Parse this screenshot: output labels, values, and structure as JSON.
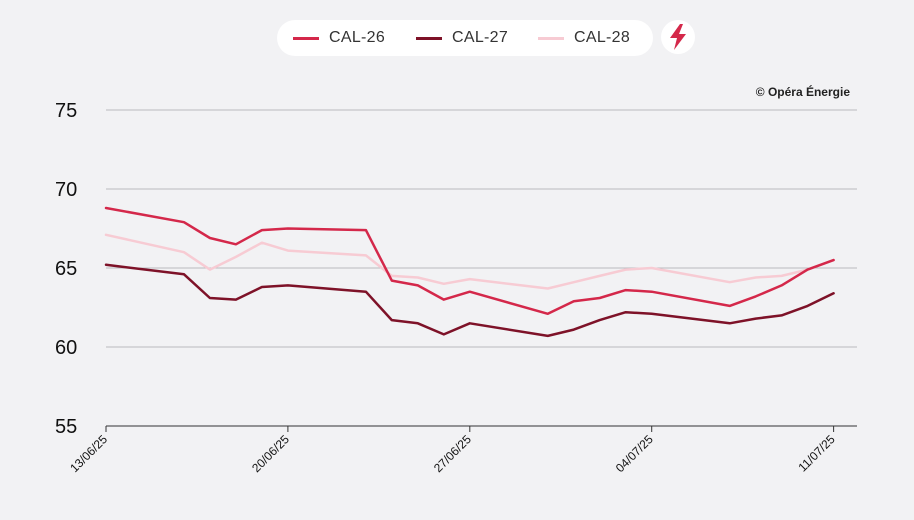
{
  "legend": {
    "cal26": "CAL-26",
    "cal27": "CAL-27",
    "cal28": "CAL-28"
  },
  "credit": "© Opéra Énergie",
  "colors": {
    "cal26": "#d4284a",
    "cal27": "#7e1228",
    "cal28": "#f7cbd3",
    "grid": "#b9b9be",
    "accent": "#d4284a"
  },
  "chart_data": {
    "type": "line",
    "x_tick_labels": [
      "13/06/25",
      "20/06/25",
      "27/06/25",
      "04/07/25",
      "11/07/25"
    ],
    "x_ticks": [
      0,
      7,
      14,
      21,
      28
    ],
    "xlim": [
      0,
      28.9
    ],
    "ylim": [
      55,
      75
    ],
    "y_ticks": [
      55,
      60,
      65,
      70,
      75
    ],
    "grid": true,
    "legend_position": "top-center",
    "series": [
      {
        "name": "CAL-26",
        "color": "#d4284a",
        "points": [
          [
            0,
            68.8
          ],
          [
            3,
            67.9
          ],
          [
            4,
            66.9
          ],
          [
            5,
            66.5
          ],
          [
            6,
            67.4
          ],
          [
            7,
            67.5
          ],
          [
            10,
            67.4
          ],
          [
            11,
            64.2
          ],
          [
            12,
            63.9
          ],
          [
            13,
            63.0
          ],
          [
            14,
            63.5
          ],
          [
            17,
            62.1
          ],
          [
            18,
            62.9
          ],
          [
            19,
            63.1
          ],
          [
            20,
            63.6
          ],
          [
            21,
            63.5
          ],
          [
            24,
            62.6
          ],
          [
            25,
            63.2
          ],
          [
            26,
            63.9
          ],
          [
            27,
            64.9
          ],
          [
            28,
            65.5
          ]
        ]
      },
      {
        "name": "CAL-27",
        "color": "#7e1228",
        "points": [
          [
            0,
            65.2
          ],
          [
            3,
            64.6
          ],
          [
            4,
            63.1
          ],
          [
            5,
            63.0
          ],
          [
            6,
            63.8
          ],
          [
            7,
            63.9
          ],
          [
            10,
            63.5
          ],
          [
            11,
            61.7
          ],
          [
            12,
            61.5
          ],
          [
            13,
            60.8
          ],
          [
            14,
            61.5
          ],
          [
            17,
            60.7
          ],
          [
            18,
            61.1
          ],
          [
            19,
            61.7
          ],
          [
            20,
            62.2
          ],
          [
            21,
            62.1
          ],
          [
            24,
            61.5
          ],
          [
            25,
            61.8
          ],
          [
            26,
            62.0
          ],
          [
            27,
            62.6
          ],
          [
            28,
            63.4
          ]
        ]
      },
      {
        "name": "CAL-28",
        "color": "#f7cbd3",
        "points": [
          [
            0,
            67.1
          ],
          [
            3,
            66.0
          ],
          [
            4,
            64.9
          ],
          [
            5,
            65.7
          ],
          [
            6,
            66.6
          ],
          [
            7,
            66.1
          ],
          [
            10,
            65.8
          ],
          [
            11,
            64.5
          ],
          [
            12,
            64.4
          ],
          [
            13,
            64.0
          ],
          [
            14,
            64.3
          ],
          [
            17,
            63.7
          ],
          [
            18,
            64.1
          ],
          [
            19,
            64.5
          ],
          [
            20,
            64.9
          ],
          [
            21,
            65.0
          ],
          [
            24,
            64.1
          ],
          [
            25,
            64.4
          ],
          [
            26,
            64.5
          ],
          [
            27,
            64.9
          ],
          [
            28,
            65.5
          ]
        ]
      }
    ]
  }
}
